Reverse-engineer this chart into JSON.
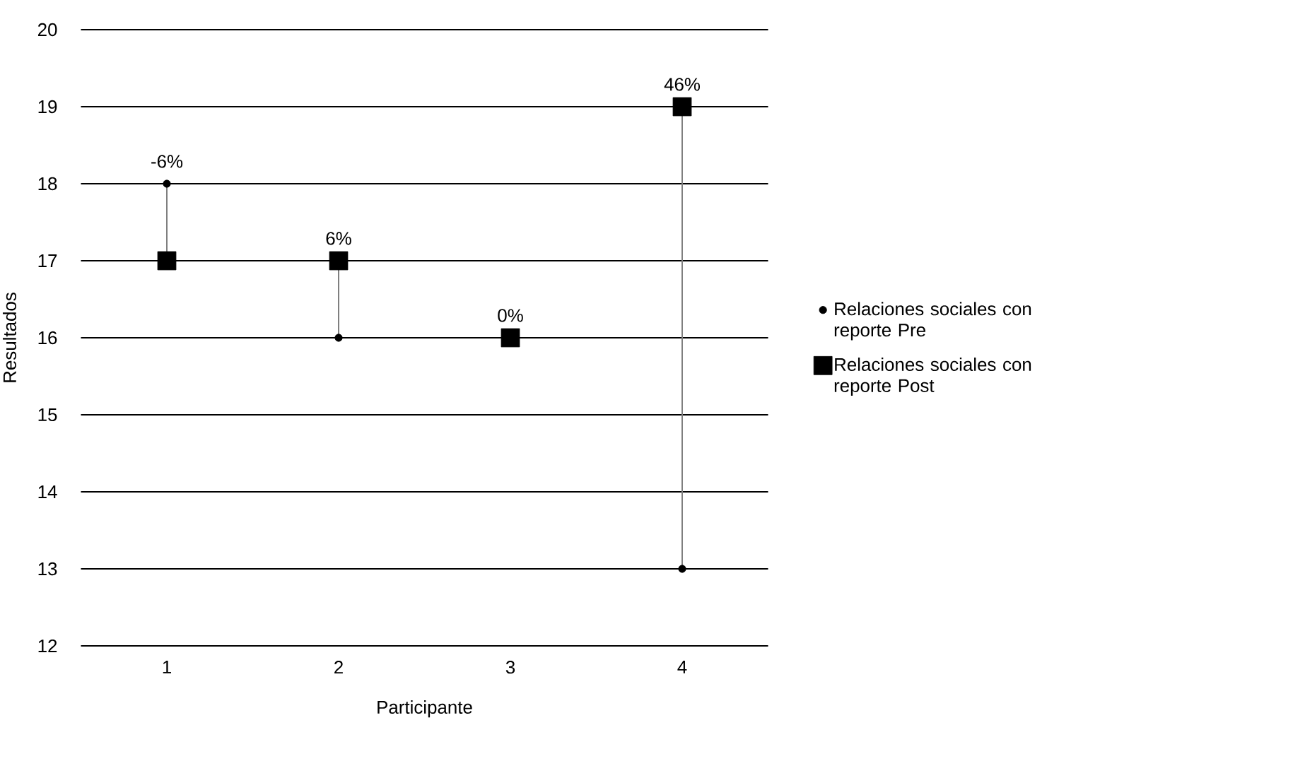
{
  "chart_data": {
    "type": "scatter",
    "xlabel": "Participante",
    "ylabel": "Resultados",
    "categories": [
      "1",
      "2",
      "3",
      "4"
    ],
    "series": [
      {
        "type": "line",
        "color": "#7f7f7f",
        "x": [
          "1",
          "1"
        ],
        "values": [
          18,
          17
        ]
      },
      {
        "type": "line",
        "color": "#7f7f7f",
        "x": [
          "2",
          "2"
        ],
        "values": [
          17,
          16
        ]
      },
      {
        "type": "line",
        "color": "#7f7f7f",
        "x": [
          "4",
          "4"
        ],
        "values": [
          19,
          13
        ]
      },
      {
        "name": "Relaciones sociales con reporte Pre",
        "color": "#000000",
        "marker": "circle",
        "values": [
          18,
          16,
          null,
          13
        ]
      },
      {
        "name": "Relaciones sociales con reporte Post",
        "color": "#000000",
        "marker": "square",
        "values": [
          17,
          17,
          16,
          19
        ]
      }
    ],
    "annotations": [
      {
        "text": "-6%",
        "x": "1",
        "y": 18
      },
      {
        "text": "6%",
        "x": "2",
        "y": 17
      },
      {
        "text": "0%",
        "x": "3",
        "y": 16
      },
      {
        "text": "46%",
        "x": "4",
        "y": 19
      }
    ],
    "ylim": [
      12,
      20
    ],
    "yticks": [
      12,
      13,
      14,
      15,
      16,
      17,
      18,
      19,
      20
    ],
    "grid": "y",
    "legend": "right"
  }
}
